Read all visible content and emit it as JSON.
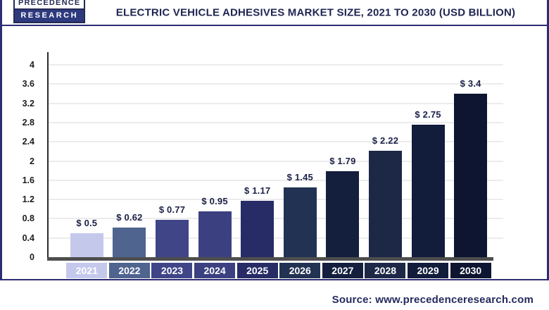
{
  "header": {
    "logo_line1": "PRECEDENCE",
    "logo_line2": "RESEARCH",
    "title": "ELECTRIC VEHICLE ADHESIVES MARKET SIZE, 2021 TO 2030 (USD BILLION)"
  },
  "footer": {
    "source": "Source: www.precedenceresearch.com"
  },
  "colors": {
    "frame_border": "#2d2d74",
    "title_text": "#1e2451",
    "grid": "#ececec",
    "y_axis_line": "#2b2b2b",
    "x_axis_line": "#4e4e4e",
    "value_label": "#1b2048",
    "year_label_text": "#ffffff",
    "source_text": "#242a5e"
  },
  "chart_data": {
    "type": "bar",
    "title": "Electric Vehicle Adhesives Market Size, 2021 to 2030 (USD Billion)",
    "unit": "USD Billion",
    "categories": [
      "2021",
      "2022",
      "2023",
      "2024",
      "2025",
      "2026",
      "2027",
      "2028",
      "2029",
      "2030"
    ],
    "values": [
      0.5,
      0.62,
      0.77,
      0.95,
      1.17,
      1.45,
      1.79,
      2.22,
      2.75,
      3.4
    ],
    "value_labels": [
      "$ 0.5",
      "$ 0.62",
      "$ 0.77",
      "$ 0.95",
      "$ 1.17",
      "$ 1.45",
      "$ 1.79",
      "$ 2.22",
      "$ 2.75",
      "$ 3.4"
    ],
    "bar_colors": [
      "#c4c9ec",
      "#4f648f",
      "#3f4587",
      "#3a4080",
      "#272c66",
      "#223252",
      "#141e3d",
      "#1c2846",
      "#121c3b",
      "#0d1530"
    ],
    "xlabel": "",
    "ylabel": "",
    "ylim": [
      0,
      4
    ],
    "yticks": [
      "0",
      "0.4",
      "0.8",
      "1.2",
      "1.6",
      "2",
      "2.4",
      "2.8",
      "3.2",
      "3.6",
      "4"
    ],
    "grid": true,
    "legend": "none",
    "value_labels_position": "above-bars"
  }
}
